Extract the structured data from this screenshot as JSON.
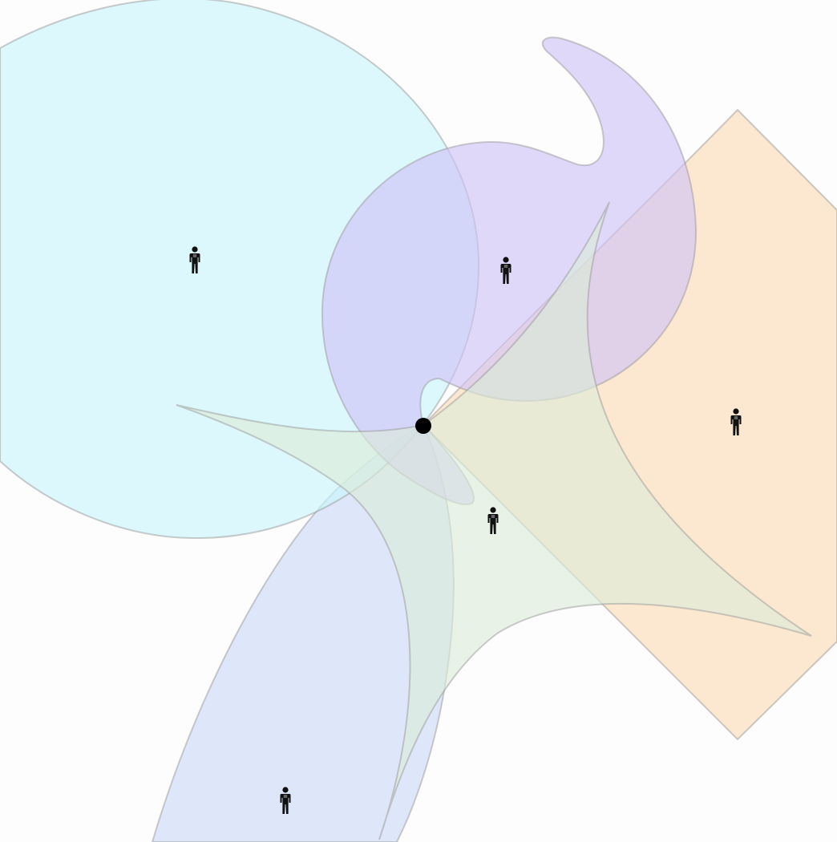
{
  "diagram": {
    "background": "#fdfdfd",
    "regions": [
      {
        "name": "cyan-circle-region",
        "color": "#c8f6fb",
        "person_icon": "person-icon"
      },
      {
        "name": "purple-crescent-region",
        "color": "#cfc2f7",
        "person_icon": "person-icon"
      },
      {
        "name": "orange-diamond-region",
        "color": "#fcdcb4",
        "person_icon": "person-icon"
      },
      {
        "name": "green-star-region",
        "color": "#dcecd9",
        "person_icon": "person-icon"
      },
      {
        "name": "blue-ribbon-region",
        "color": "#ccd9f7",
        "person_icon": "person-icon"
      }
    ],
    "center_point": {
      "icon": "center-dot",
      "color": "#000000"
    }
  }
}
